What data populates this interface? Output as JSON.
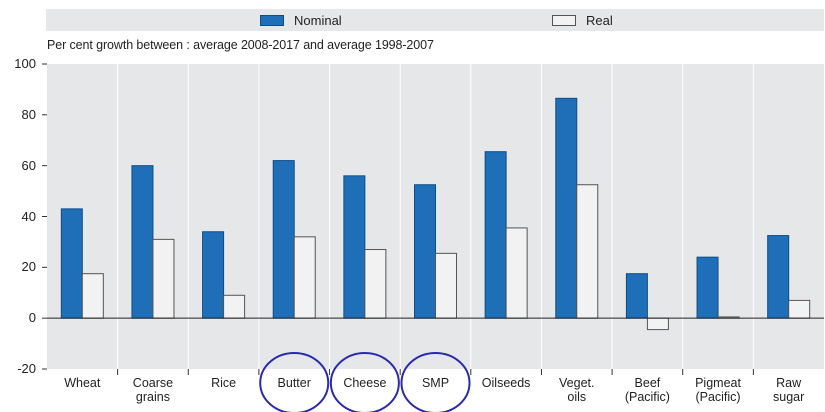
{
  "legend": {
    "items": [
      {
        "label": "Nominal",
        "color": "#1f6fb8"
      },
      {
        "label": "Real",
        "color": "#f2f2f2"
      }
    ]
  },
  "chart_data": {
    "type": "bar",
    "subtitle": "Per cent growth between : average 2008-2017 and average 1998-2007",
    "categories": [
      "Wheat",
      "Coarse\ngrains",
      "Rice",
      "Butter",
      "Cheese",
      "SMP",
      "Oilseeds",
      "Veget.\noils",
      "Beef\n(Pacific)",
      "Pigmeat\n(Pacific)",
      "Raw\nsugar"
    ],
    "series": [
      {
        "name": "Nominal",
        "color": "#1f6fb8",
        "values": [
          43,
          60,
          34,
          62,
          56,
          52.5,
          65.5,
          86.5,
          17.5,
          24,
          32.5
        ]
      },
      {
        "name": "Real",
        "color": "#f2f2f2",
        "values": [
          17.5,
          31,
          9,
          32,
          27,
          25.5,
          35.5,
          52.5,
          -4.5,
          0.5,
          7
        ]
      }
    ],
    "ylim": [
      -20,
      100
    ],
    "yticks": [
      -20,
      0,
      20,
      40,
      60,
      80,
      100
    ],
    "grid": false,
    "background": "#e6e7e8",
    "legend_position": "top",
    "highlighted_categories": [
      "Butter",
      "Cheese",
      "SMP"
    ],
    "highlight_color": "#2a2ab0"
  }
}
